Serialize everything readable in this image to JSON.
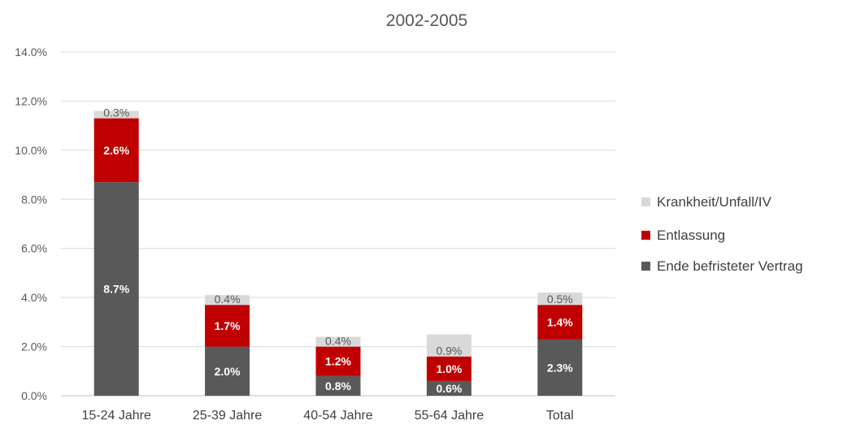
{
  "chart_data": {
    "type": "bar",
    "stacked": true,
    "title": "2002-2005",
    "xlabel": "",
    "ylabel": "",
    "ylim": [
      0,
      14
    ],
    "yticks": [
      "0.0%",
      "2.0%",
      "4.0%",
      "6.0%",
      "8.0%",
      "10.0%",
      "12.0%",
      "14.0%"
    ],
    "grid": true,
    "legend_position": "right",
    "categories": [
      "15-24 Jahre",
      "25-39 Jahre",
      "40-54 Jahre",
      "55-64 Jahre",
      "Total"
    ],
    "series": [
      {
        "name": "Ende befristeter Vertrag",
        "color": "#595959",
        "label_color": "#ffffff",
        "values": [
          8.7,
          2.0,
          0.8,
          0.6,
          2.3
        ],
        "labels": [
          "8.7%",
          "2.0%",
          "0.8%",
          "0.6%",
          "2.3%"
        ]
      },
      {
        "name": "Entlassung",
        "color": "#c00000",
        "label_color": "#ffffff",
        "values": [
          2.6,
          1.7,
          1.2,
          1.0,
          1.4
        ],
        "labels": [
          "2.6%",
          "1.7%",
          "1.2%",
          "1.0%",
          "1.4%"
        ]
      },
      {
        "name": "Krankheit/Unfall/IV",
        "color": "#d9d9d9",
        "label_color": "#595959",
        "values": [
          0.3,
          0.4,
          0.4,
          0.9,
          0.5
        ],
        "labels": [
          "0.3%",
          "0.4%",
          "0.4%",
          "0.9%",
          "0.5%"
        ]
      }
    ],
    "legend_order": [
      "Krankheit/Unfall/IV",
      "Entlassung",
      "Ende befristeter Vertrag"
    ]
  }
}
